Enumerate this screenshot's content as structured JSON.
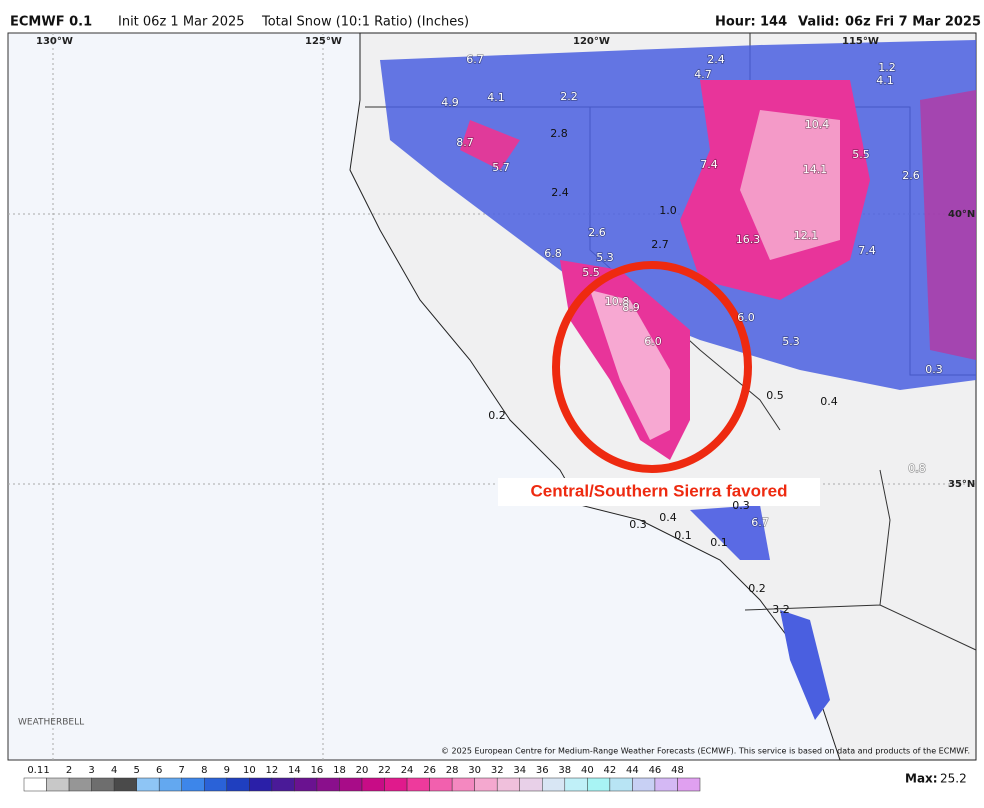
{
  "header": {
    "model": "ECMWF 0.1",
    "init": "Init 06z 1 Mar 2025",
    "product": "Total Snow (10:1 Ratio) (Inches)",
    "hour_label": "Hour:",
    "hour": "144",
    "valid_label": "Valid:",
    "valid": "06z Fri 7 Mar 2025"
  },
  "grid_labels": [
    "130°W",
    "125°W",
    "120°W",
    "115°W",
    "40°N",
    "35°N"
  ],
  "map_labels": [
    "6.7",
    "2.4",
    "4.7",
    "1.2",
    "4.1",
    "4.1",
    "2.2",
    "4.9",
    "10.4",
    "2.8",
    "8.7",
    "5.5",
    "5.7",
    "7.4",
    "14.1",
    "2.6",
    "2.4",
    "1.0",
    "2.6",
    "16.3",
    "12.1",
    "2.7",
    "6.8",
    "5.3",
    "7.4",
    "5.5",
    "10.8",
    "8.9",
    "6.0",
    "6.0",
    "5.3",
    "0.3",
    "0.5",
    "0.4",
    "0.2",
    "0.8",
    "0.3",
    "6.7",
    "0.4",
    "0.3",
    "0.1",
    "0.1",
    "0.2",
    "3.2"
  ],
  "annotation": "Central/Southern Sierra favored",
  "logo": "WEATHERBELL",
  "copyright": "© 2025 European Centre for Medium-Range Weather Forecasts (ECMWF). This service is based on data and products of the ECMWF.",
  "legend": {
    "ticks": [
      0.1,
      1,
      2,
      3,
      4,
      5,
      6,
      7,
      8,
      9,
      10,
      12,
      14,
      16,
      18,
      20,
      22,
      24,
      26,
      28,
      30,
      32,
      34,
      36,
      38,
      40,
      42,
      44,
      46,
      48
    ],
    "max_label": "Max:",
    "max": "25.2"
  }
}
